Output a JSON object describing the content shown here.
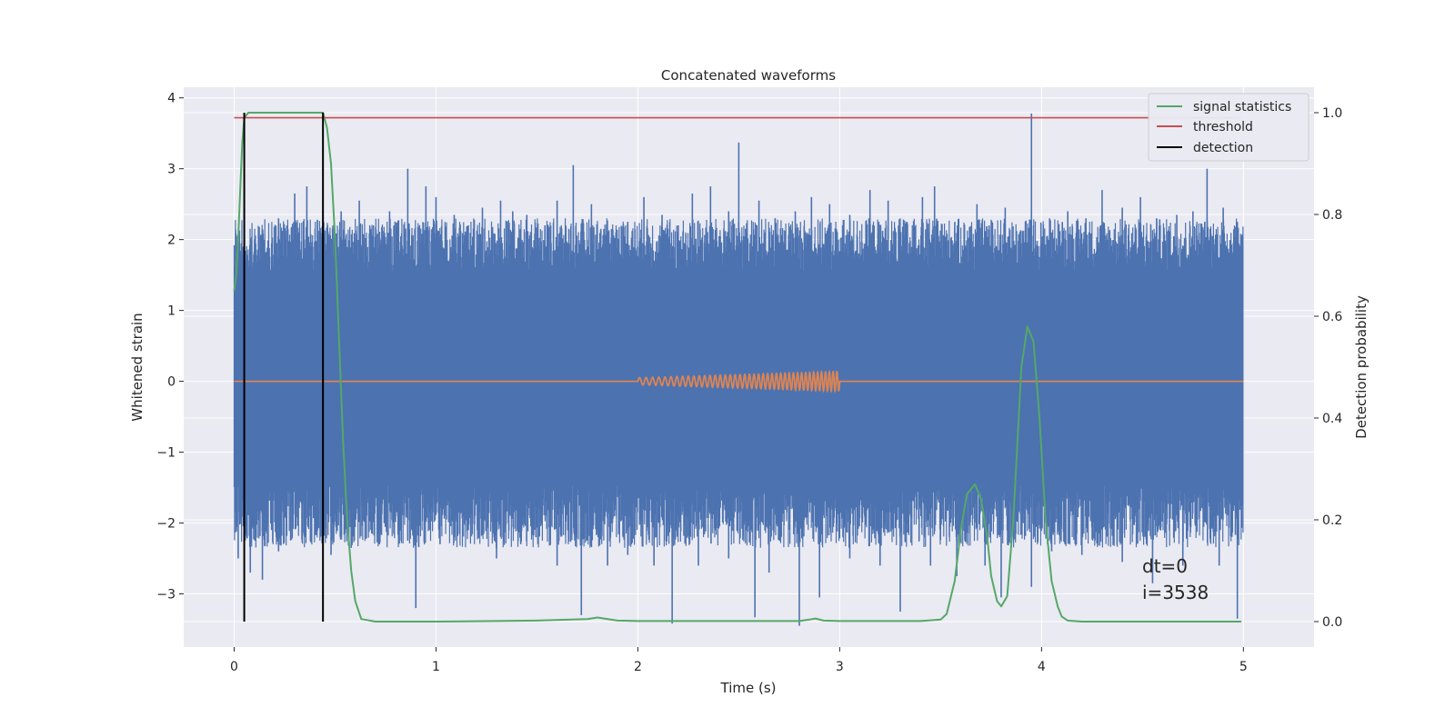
{
  "chart_data": {
    "type": "line",
    "title": "Concatenated waveforms",
    "xlabel": "Time (s)",
    "ylabel_left": "Whitened strain",
    "ylabel_right": "Detection probability",
    "xlim": [
      -0.25,
      5.35
    ],
    "ylim_left": [
      -3.75,
      4.15
    ],
    "ylim_right": [
      -0.05,
      1.05
    ],
    "x_ticks": [
      0,
      1,
      2,
      3,
      4,
      5
    ],
    "y_ticks_left": [
      -3,
      -2,
      -1,
      0,
      1,
      2,
      3,
      4
    ],
    "y_ticks_right": [
      0.0,
      0.2,
      0.4,
      0.6,
      0.8,
      1.0
    ],
    "grid": true,
    "legend_position": "upper right",
    "colors": {
      "strain": "#4c72b0",
      "injected": "#dd8452",
      "signal_statistics": "#55a868",
      "threshold": "#c44e52",
      "detection": "#000000",
      "background": "#eaeaf2",
      "grid": "#ffffff"
    },
    "series": [
      {
        "name": "",
        "axis": "left",
        "color": "#4c72b0",
        "description_kind": "noise",
        "x_range": [
          0,
          5
        ],
        "band": [
          -1.45,
          1.55
        ],
        "spikes_up": [
          [
            0.01,
            2.05
          ],
          [
            0.05,
            2.1
          ],
          [
            0.09,
            1.6
          ],
          [
            0.14,
            2.15
          ],
          [
            0.22,
            2.3
          ],
          [
            0.3,
            2.65
          ],
          [
            0.36,
            2.75
          ],
          [
            0.44,
            2.55
          ],
          [
            0.53,
            2.4
          ],
          [
            0.62,
            2.55
          ],
          [
            0.69,
            2.2
          ],
          [
            0.77,
            2.4
          ],
          [
            0.86,
            3.0
          ],
          [
            0.95,
            2.75
          ],
          [
            1.0,
            2.6
          ],
          [
            1.09,
            2.35
          ],
          [
            1.16,
            2.2
          ],
          [
            1.23,
            2.45
          ],
          [
            1.32,
            2.55
          ],
          [
            1.38,
            2.4
          ],
          [
            1.45,
            2.35
          ],
          [
            1.54,
            2.2
          ],
          [
            1.6,
            2.55
          ],
          [
            1.68,
            3.05
          ],
          [
            1.77,
            2.5
          ],
          [
            1.87,
            2.15
          ],
          [
            1.95,
            2.25
          ],
          [
            2.03,
            2.6
          ],
          [
            2.12,
            2.35
          ],
          [
            2.2,
            2.2
          ],
          [
            2.27,
            2.65
          ],
          [
            2.36,
            2.75
          ],
          [
            2.45,
            2.4
          ],
          [
            2.5,
            3.37
          ],
          [
            2.6,
            2.55
          ],
          [
            2.68,
            2.3
          ],
          [
            2.78,
            2.4
          ],
          [
            2.86,
            2.6
          ],
          [
            2.95,
            2.5
          ],
          [
            3.05,
            2.35
          ],
          [
            3.15,
            2.7
          ],
          [
            3.24,
            2.55
          ],
          [
            3.33,
            2.25
          ],
          [
            3.41,
            2.6
          ],
          [
            3.47,
            2.75
          ],
          [
            3.57,
            2.25
          ],
          [
            3.68,
            2.5
          ],
          [
            3.74,
            2.2
          ],
          [
            3.82,
            2.45
          ],
          [
            3.95,
            3.78
          ],
          [
            4.04,
            2.3
          ],
          [
            4.13,
            2.4
          ],
          [
            4.22,
            2.3
          ],
          [
            4.3,
            2.7
          ],
          [
            4.4,
            2.45
          ],
          [
            4.49,
            2.6
          ],
          [
            4.57,
            2.3
          ],
          [
            4.67,
            2.35
          ],
          [
            4.75,
            2.4
          ],
          [
            4.82,
            3.0
          ],
          [
            4.9,
            2.45
          ],
          [
            4.97,
            2.25
          ]
        ],
        "spikes_down": [
          [
            0.02,
            -2.5
          ],
          [
            0.08,
            -2.7
          ],
          [
            0.14,
            -2.8
          ],
          [
            0.22,
            -2.4
          ],
          [
            0.35,
            -2.2
          ],
          [
            0.48,
            -2.45
          ],
          [
            0.58,
            -2.35
          ],
          [
            0.72,
            -2.3
          ],
          [
            0.86,
            -2.25
          ],
          [
            0.9,
            -3.2
          ],
          [
            1.02,
            -2.3
          ],
          [
            1.16,
            -2.1
          ],
          [
            1.3,
            -2.5
          ],
          [
            1.42,
            -2.3
          ],
          [
            1.6,
            -2.6
          ],
          [
            1.72,
            -3.3
          ],
          [
            1.85,
            -2.6
          ],
          [
            1.95,
            -2.45
          ],
          [
            2.08,
            -2.6
          ],
          [
            2.17,
            -3.42
          ],
          [
            2.3,
            -2.6
          ],
          [
            2.45,
            -2.5
          ],
          [
            2.58,
            -3.33
          ],
          [
            2.65,
            -2.7
          ],
          [
            2.8,
            -3.45
          ],
          [
            2.9,
            -3.05
          ],
          [
            3.05,
            -2.5
          ],
          [
            3.2,
            -2.6
          ],
          [
            3.3,
            -3.25
          ],
          [
            3.45,
            -2.6
          ],
          [
            3.58,
            -2.75
          ],
          [
            3.72,
            -2.6
          ],
          [
            3.8,
            -3.05
          ],
          [
            3.95,
            -2.9
          ],
          [
            4.05,
            -2.4
          ],
          [
            4.2,
            -2.45
          ],
          [
            4.4,
            -2.55
          ],
          [
            4.55,
            -2.85
          ],
          [
            4.7,
            -2.6
          ],
          [
            4.88,
            -2.6
          ],
          [
            4.97,
            -3.35
          ]
        ]
      },
      {
        "name": "",
        "axis": "left",
        "color": "#dd8452",
        "description_kind": "chirp",
        "x_range": [
          0,
          5
        ],
        "chirp_range": [
          2.0,
          3.0
        ],
        "chirp_amplitude_start": 0.05,
        "chirp_amplitude_end": 0.14
      },
      {
        "name": "signal statistics",
        "axis": "right",
        "color": "#55a868",
        "x": [
          0.0,
          0.01,
          0.02,
          0.03,
          0.04,
          0.05,
          0.07,
          0.1,
          0.2,
          0.3,
          0.4,
          0.44,
          0.46,
          0.48,
          0.5,
          0.52,
          0.54,
          0.56,
          0.58,
          0.6,
          0.63,
          0.7,
          1.0,
          1.5,
          1.75,
          1.8,
          1.85,
          1.9,
          2.0,
          2.5,
          2.8,
          2.85,
          2.88,
          2.92,
          3.0,
          3.4,
          3.5,
          3.53,
          3.57,
          3.6,
          3.63,
          3.67,
          3.7,
          3.73,
          3.75,
          3.78,
          3.8,
          3.83,
          3.86,
          3.9,
          3.93,
          3.96,
          3.99,
          4.02,
          4.05,
          4.08,
          4.1,
          4.13,
          4.2,
          4.5,
          4.99
        ],
        "values": [
          0.65,
          0.68,
          0.75,
          0.85,
          0.94,
          0.99,
          1.0,
          1.0,
          1.0,
          1.0,
          1.0,
          1.0,
          0.97,
          0.9,
          0.75,
          0.55,
          0.35,
          0.2,
          0.1,
          0.04,
          0.005,
          0.0,
          0.0,
          0.002,
          0.005,
          0.008,
          0.005,
          0.002,
          0.001,
          0.001,
          0.001,
          0.004,
          0.006,
          0.002,
          0.001,
          0.001,
          0.004,
          0.015,
          0.08,
          0.18,
          0.25,
          0.27,
          0.24,
          0.17,
          0.09,
          0.04,
          0.03,
          0.05,
          0.2,
          0.5,
          0.58,
          0.55,
          0.4,
          0.2,
          0.08,
          0.03,
          0.01,
          0.002,
          0.0,
          0.0,
          0.0
        ]
      },
      {
        "name": "threshold",
        "axis": "right",
        "color": "#c44e52",
        "x": [
          0,
          4.99
        ],
        "values": [
          0.99,
          0.99
        ]
      },
      {
        "name": "detection",
        "axis": "right",
        "color": "#000000",
        "vlines": [
          0.05,
          0.44
        ],
        "vline_range": [
          0.0,
          1.0
        ]
      }
    ],
    "legend": [
      "signal statistics",
      "threshold",
      "detection"
    ],
    "annotations": [
      "dt=0",
      "i=3538"
    ]
  }
}
